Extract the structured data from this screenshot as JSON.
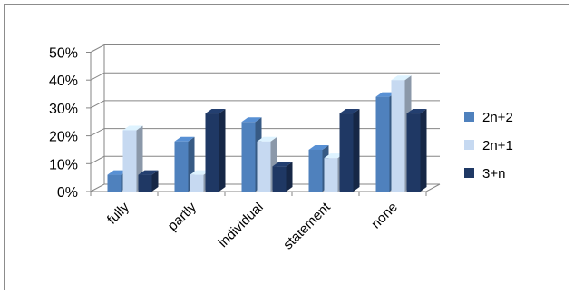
{
  "chart_data": {
    "type": "bar",
    "title": "",
    "xlabel": "",
    "ylabel": "",
    "ylim": [
      0,
      50
    ],
    "yticks": [
      0,
      10,
      20,
      30,
      40,
      50
    ],
    "ytick_labels": [
      "0%",
      "10%",
      "20%",
      "30%",
      "40%",
      "50%"
    ],
    "categories": [
      "fully",
      "partly",
      "individual",
      "statement",
      "none"
    ],
    "series": [
      {
        "name": "2n+2",
        "values": [
          6,
          18,
          25,
          15,
          34
        ],
        "color": "#4f81bd"
      },
      {
        "name": "2n+1",
        "values": [
          22,
          6,
          18,
          12,
          40
        ],
        "color": "#c6d9f1"
      },
      {
        "name": "3+n",
        "values": [
          6,
          28,
          9,
          28,
          28
        ],
        "color": "#1f3864"
      }
    ],
    "grid": true,
    "legend": "right",
    "style": "3d-clustered-column"
  }
}
